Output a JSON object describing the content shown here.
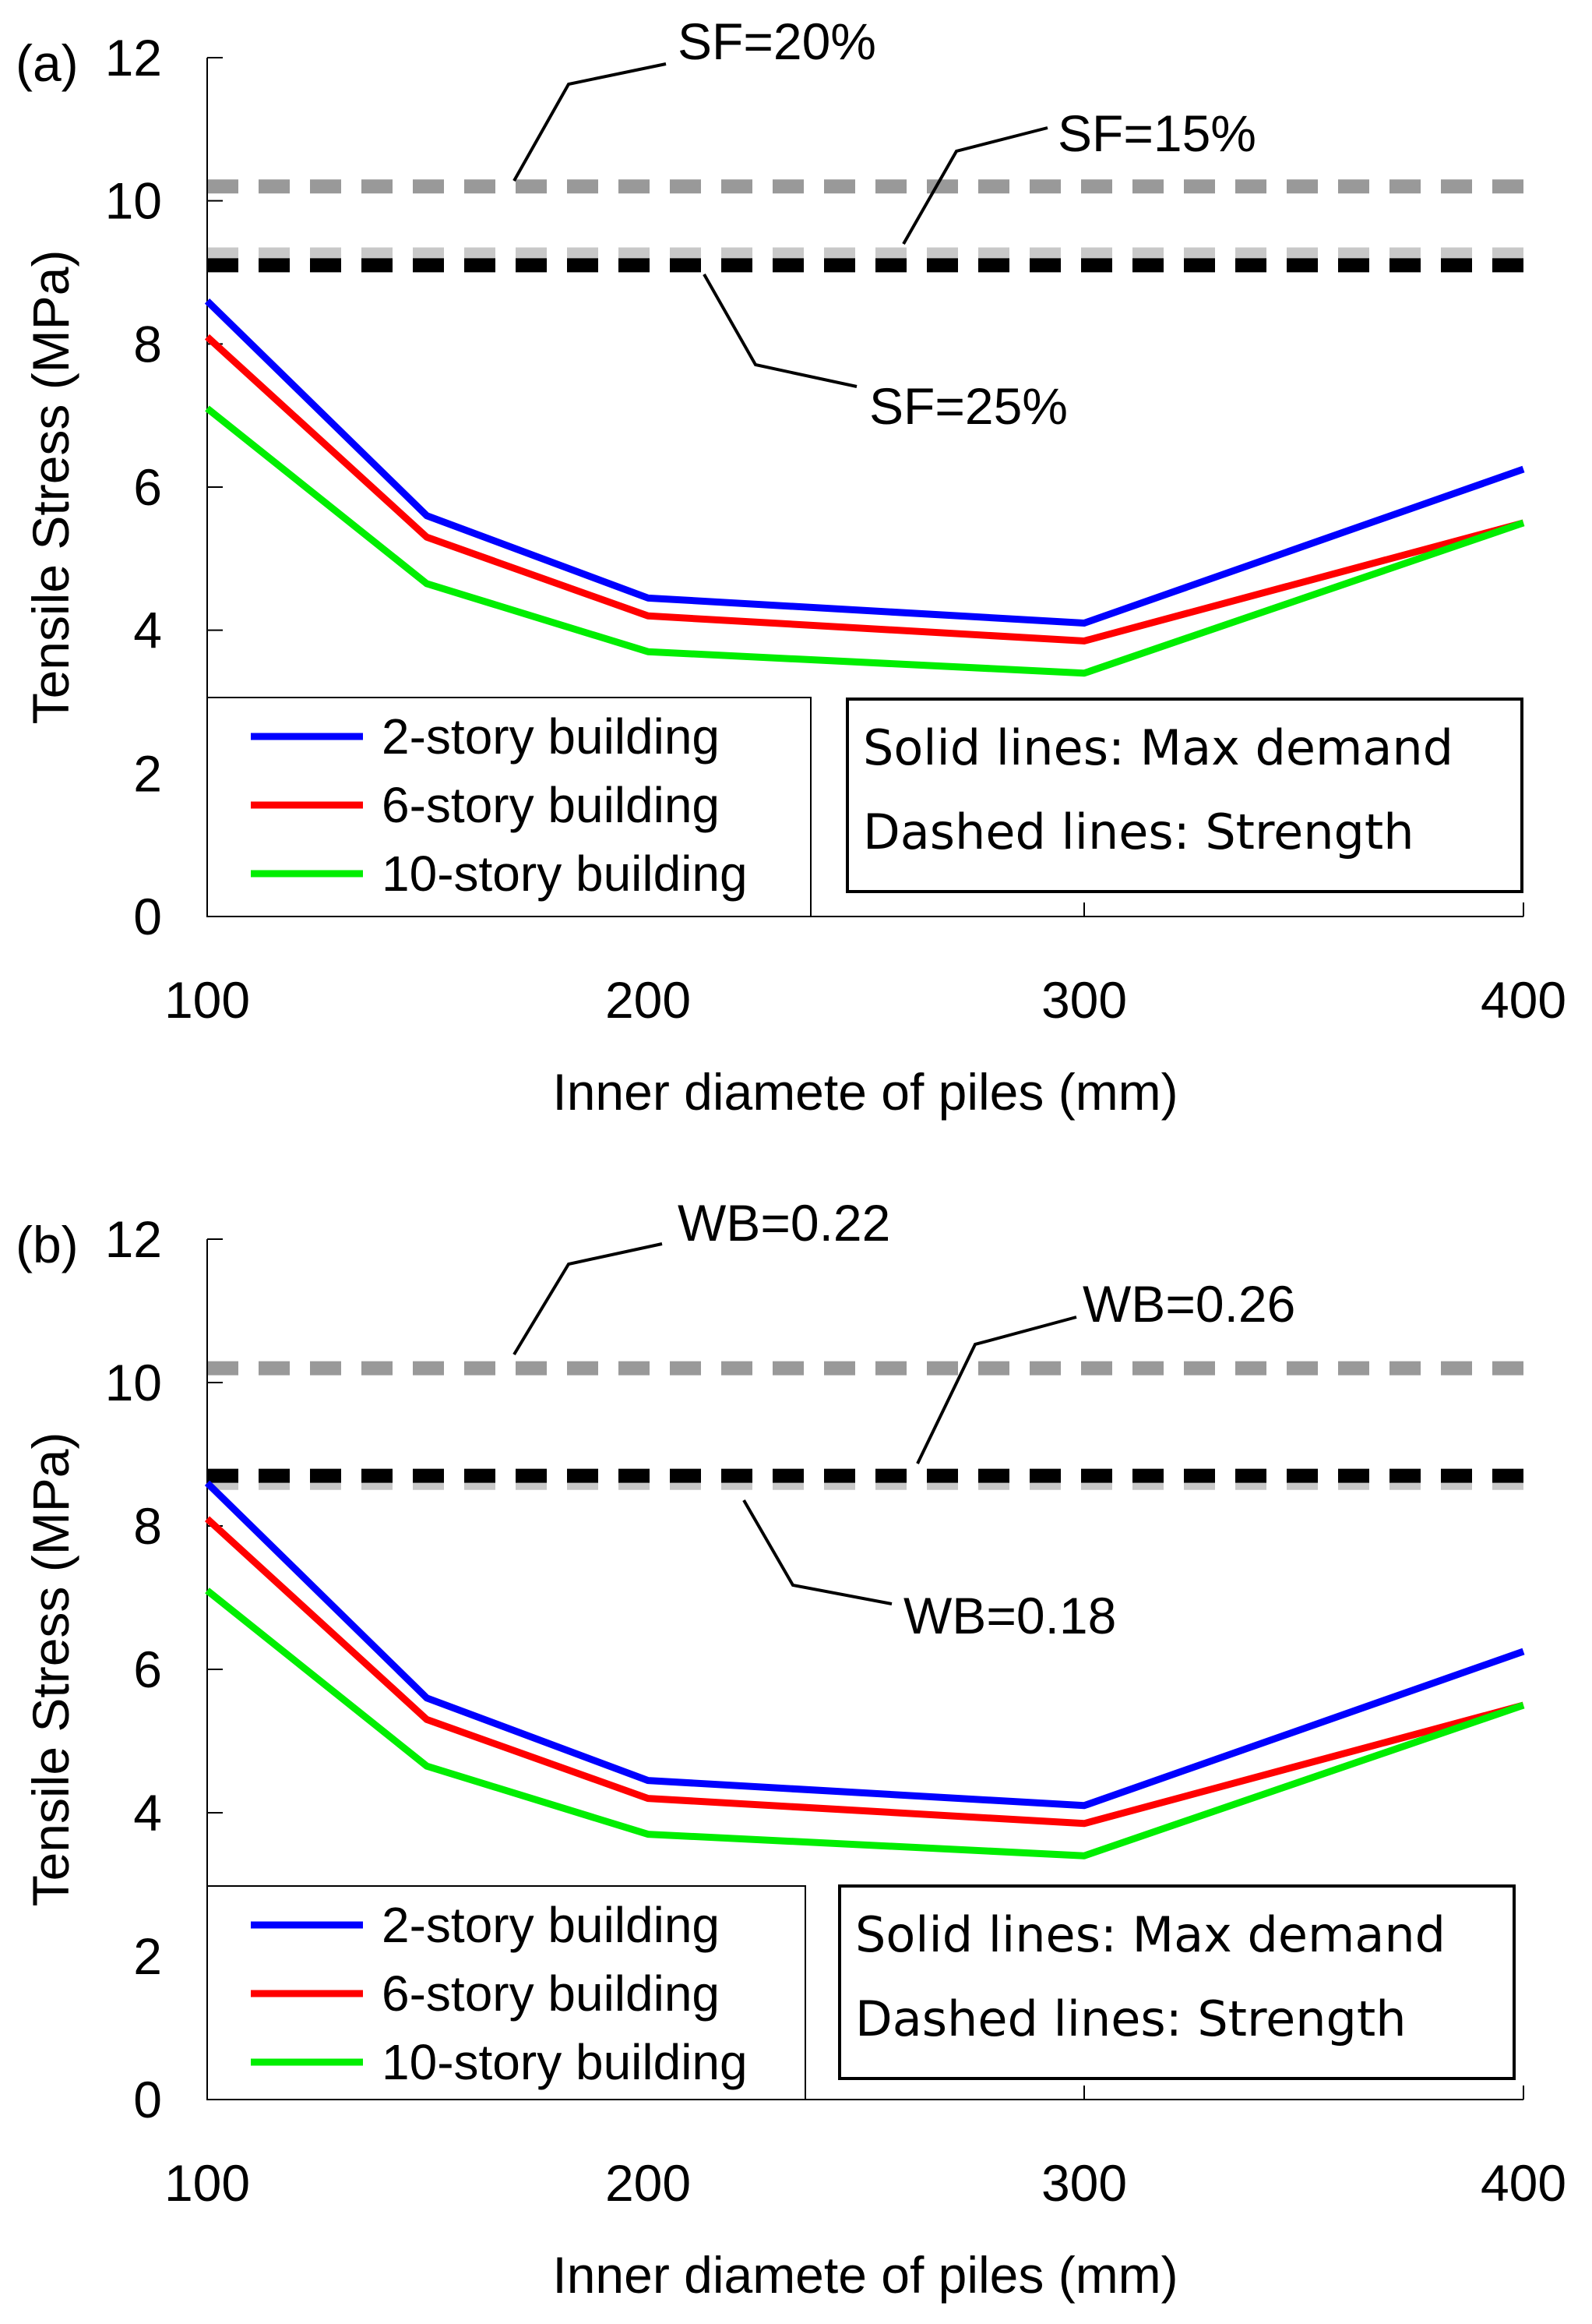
{
  "chart_data": [
    {
      "type": "line",
      "panel_label": "(a)",
      "xlabel": "Inner diamete of piles (mm)",
      "ylabel": "Tensile Stress (MPa)",
      "categories": [
        "100",
        "150",
        "200",
        "300",
        "400"
      ],
      "category_positions": [
        100,
        150,
        200,
        300,
        400
      ],
      "x_tick_labels": [
        "100",
        "200",
        "300",
        "400"
      ],
      "y_tick_labels": [
        "0",
        "2",
        "4",
        "6",
        "8",
        "10",
        "12"
      ],
      "ylim": [
        0,
        12
      ],
      "series": [
        {
          "name": "2-story building",
          "color": "#0000ff",
          "style": "solid",
          "values": [
            8.6,
            5.6,
            4.45,
            4.1,
            6.25
          ]
        },
        {
          "name": "6-story building",
          "color": "#ff0000",
          "style": "solid",
          "values": [
            8.1,
            5.3,
            4.2,
            3.85,
            5.5
          ]
        },
        {
          "name": "10-story building",
          "color": "#00ee00",
          "style": "solid",
          "values": [
            7.1,
            4.65,
            3.7,
            3.4,
            5.5
          ]
        }
      ],
      "reference_lines": [
        {
          "label": "SF=20%",
          "value": 10.2,
          "color": "#999999",
          "style": "dashed"
        },
        {
          "label": "SF=15%",
          "value": 9.25,
          "color": "#c8c8c8",
          "style": "dashed"
        },
        {
          "label": "SF=25%",
          "value": 9.1,
          "color": "#000000",
          "style": "dashed"
        }
      ],
      "text_box": [
        "Solid lines: Max demand",
        "Dashed lines: Strength"
      ],
      "grid": false,
      "legend_position": "bottom-left"
    },
    {
      "type": "line",
      "panel_label": "(b)",
      "xlabel": "Inner diamete of piles (mm)",
      "ylabel": "Tensile Stress (MPa)",
      "categories": [
        "100",
        "150",
        "200",
        "300",
        "400"
      ],
      "category_positions": [
        100,
        150,
        200,
        300,
        400
      ],
      "x_tick_labels": [
        "100",
        "200",
        "300",
        "400"
      ],
      "y_tick_labels": [
        "0",
        "2",
        "4",
        "6",
        "8",
        "10",
        "12"
      ],
      "ylim": [
        0,
        12
      ],
      "series": [
        {
          "name": "2-story building",
          "color": "#0000ff",
          "style": "solid",
          "values": [
            8.6,
            5.6,
            4.45,
            4.1,
            6.25
          ]
        },
        {
          "name": "6-story building",
          "color": "#ff0000",
          "style": "solid",
          "values": [
            8.1,
            5.3,
            4.2,
            3.85,
            5.5
          ]
        },
        {
          "name": "10-story building",
          "color": "#00ee00",
          "style": "solid",
          "values": [
            7.1,
            4.65,
            3.7,
            3.4,
            5.5
          ]
        }
      ],
      "reference_lines": [
        {
          "label": "WB=0.22",
          "value": 10.2,
          "color": "#999999",
          "style": "dashed"
        },
        {
          "label": "WB=0.26",
          "value": 8.6,
          "color": "#c8c8c8",
          "style": "dashed"
        },
        {
          "label": "WB=0.18",
          "value": 8.7,
          "color": "#000000",
          "style": "dashed"
        }
      ],
      "text_box": [
        "Solid lines: Max demand",
        "Dashed lines: Strength"
      ],
      "grid": false,
      "legend_position": "bottom-left"
    }
  ]
}
